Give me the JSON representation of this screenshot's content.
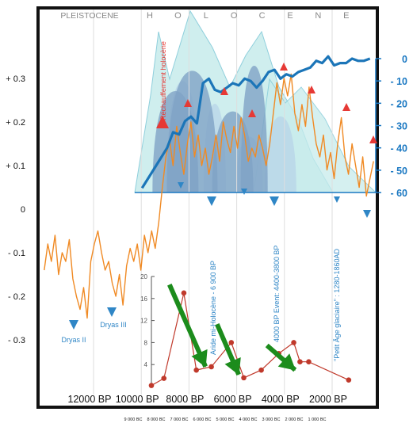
{
  "chart_data": {
    "type": "line",
    "period_labels": {
      "pleistocene": "PLEISTOCENE",
      "holocene": [
        "H",
        "O",
        "L",
        "O",
        "C",
        "E",
        "N",
        "E"
      ]
    },
    "left_axis": {
      "ticks": [
        "+ 0.3",
        "+ 0.2",
        "+ 0.1",
        "0",
        "- 0.1",
        "- 0.2",
        "- 0.3"
      ],
      "values": [
        0.3,
        0.2,
        0.1,
        0,
        -0.1,
        -0.2,
        -0.3
      ]
    },
    "right_axis": {
      "ticks": [
        "0",
        "- 10",
        "- 20",
        "- 30",
        "- 40",
        "- 50",
        "- 60"
      ],
      "values": [
        0,
        -10,
        -20,
        -30,
        -40,
        -50,
        -60
      ],
      "color": "#1a78c2"
    },
    "inset_axis": {
      "ticks": [
        "20",
        "16",
        "12",
        "8",
        "4"
      ],
      "values": [
        20,
        16,
        12,
        8,
        4
      ]
    },
    "x_axis": {
      "ticks": [
        "12000 BP",
        "10000 BP",
        "8000 BP",
        "6000 BP",
        "4000 BP",
        "2000 BP"
      ],
      "values": [
        12000,
        10000,
        8000,
        6000,
        4000,
        2000
      ]
    },
    "bottom_axis": {
      "ticks": [
        "9 000 BC",
        "8 000 BC",
        "7 000 BC",
        "6 000 BC",
        "5 000 BC",
        "4 000 BC",
        "3 000 BC",
        "2 000 BC",
        "1 000 BC"
      ]
    },
    "annotations": {
      "dryas_ii": "Dryas II",
      "dryas_iii": "Dryas III",
      "rechauffement": "Réchauffement holocène",
      "aride": "Aride mi-Holocène - 6 900 BP",
      "event_4000": "4000 BP Event: 4400-3800 BP",
      "petit_age": "\"Petit Âge glaciaire\" : 1280-1860AD"
    },
    "series": [
      {
        "color": "#f08a24",
        "values_bp": [
          13900,
          13750,
          13600,
          13450,
          13300,
          13150,
          13000,
          12850,
          12700,
          12550,
          12400,
          12250,
          12100,
          11950,
          11800,
          11650,
          11500,
          11350,
          11200,
          11050,
          10900,
          10750,
          10600,
          10450,
          10300,
          10150,
          10000,
          9850,
          9700,
          9550,
          9400,
          9250,
          9100,
          8950,
          8800,
          8650,
          8500,
          8350,
          8200,
          8050,
          7900,
          7750,
          7600,
          7450,
          7300,
          7150,
          7000,
          6850,
          6700,
          6550,
          6400,
          6250,
          6100,
          5950,
          5800,
          5650,
          5500,
          5350,
          5200,
          5050,
          4900,
          4750,
          4600,
          4450,
          4300,
          4150,
          4000,
          3850,
          3700,
          3550,
          3400,
          3250,
          3100,
          2950,
          2800,
          2650,
          2500,
          2350,
          2200,
          2050,
          1900,
          1750,
          1600,
          1450,
          1300,
          1150,
          1000,
          850,
          700,
          550,
          400,
          250,
          100
        ],
        "values": [
          -0.14,
          -0.08,
          -0.12,
          -0.06,
          -0.15,
          -0.1,
          -0.12,
          -0.07,
          -0.16,
          -0.2,
          -0.23,
          -0.18,
          -0.25,
          -0.12,
          -0.08,
          -0.05,
          -0.1,
          -0.14,
          -0.12,
          -0.17,
          -0.2,
          -0.15,
          -0.22,
          -0.13,
          -0.09,
          -0.12,
          -0.08,
          -0.14,
          -0.06,
          -0.1,
          -0.05,
          -0.09,
          -0.03,
          0.05,
          0.12,
          0.16,
          0.1,
          0.19,
          0.13,
          0.08,
          0.15,
          0.2,
          0.12,
          0.17,
          0.1,
          0.14,
          0.08,
          0.12,
          0.17,
          0.11,
          0.2,
          0.16,
          0.13,
          0.19,
          0.14,
          0.21,
          0.17,
          0.11,
          0.14,
          0.12,
          0.17,
          0.14,
          0.1,
          0.15,
          0.22,
          0.29,
          0.24,
          0.3,
          0.26,
          0.31,
          0.22,
          0.18,
          0.24,
          0.19,
          0.28,
          0.21,
          0.15,
          0.12,
          0.17,
          0.09,
          0.13,
          0.07,
          0.15,
          0.21,
          0.12,
          0.08,
          0.15,
          0.1,
          0.05,
          0.12,
          0.03,
          0.07,
          0.11
        ]
      },
      {
        "color": "#1b75b8",
        "values_bp": [
          9800,
          9450,
          9100,
          8750,
          8500,
          8250,
          8000,
          7750,
          7500,
          7250,
          7000,
          6750,
          6500,
          6250,
          6000,
          5750,
          5500,
          5250,
          5000,
          4750,
          4500,
          4250,
          4000,
          3750,
          3500,
          3250,
          3000,
          2750,
          2500,
          2250,
          2000,
          1750,
          1500,
          1250,
          1000,
          750,
          500,
          250
        ],
        "values": [
          -58,
          -52,
          -46,
          -40,
          -33,
          -34,
          -28,
          -26,
          -29,
          -11,
          -9,
          -14,
          -15,
          -13,
          -11,
          -12,
          -9,
          -10,
          -13,
          -10,
          -6,
          -5,
          -9,
          -7,
          -8,
          -6,
          -5,
          -4,
          -1,
          -2,
          1,
          -3,
          -2,
          -2,
          0,
          -1,
          -1,
          0
        ]
      }
    ],
    "inset_series": {
      "color": "#c0392b",
      "x_bc": [
        9000,
        8500,
        7700,
        7200,
        6600,
        5800,
        5300,
        4600,
        3900,
        3300,
        3050,
        2700,
        1100
      ],
      "values": [
        0.2,
        1.5,
        17.0,
        3.0,
        3.6,
        8.0,
        1.6,
        3.0,
        6.0,
        8.0,
        4.5,
        4.5,
        1.2
      ]
    },
    "peaks": [
      {
        "color": "#b9d6e8",
        "center_bp": 8100,
        "height": 44
      },
      {
        "color": "#b9d6e8",
        "center_bp": 6750,
        "height": 35
      },
      {
        "color": "#b9d6e8",
        "center_bp": 5300,
        "height": 22
      },
      {
        "color": "#b9d6e8",
        "center_bp": 4000,
        "height": 30
      },
      {
        "color": "#7fa3c6",
        "center_bp": 8400,
        "height": 40
      },
      {
        "color": "#7fa3c6",
        "center_bp": 7700,
        "height": 48
      },
      {
        "color": "#7fa3c6",
        "center_bp": 6000,
        "height": 32
      },
      {
        "color": "#7fa3c6",
        "center_bp": 5100,
        "height": 50
      }
    ]
  }
}
